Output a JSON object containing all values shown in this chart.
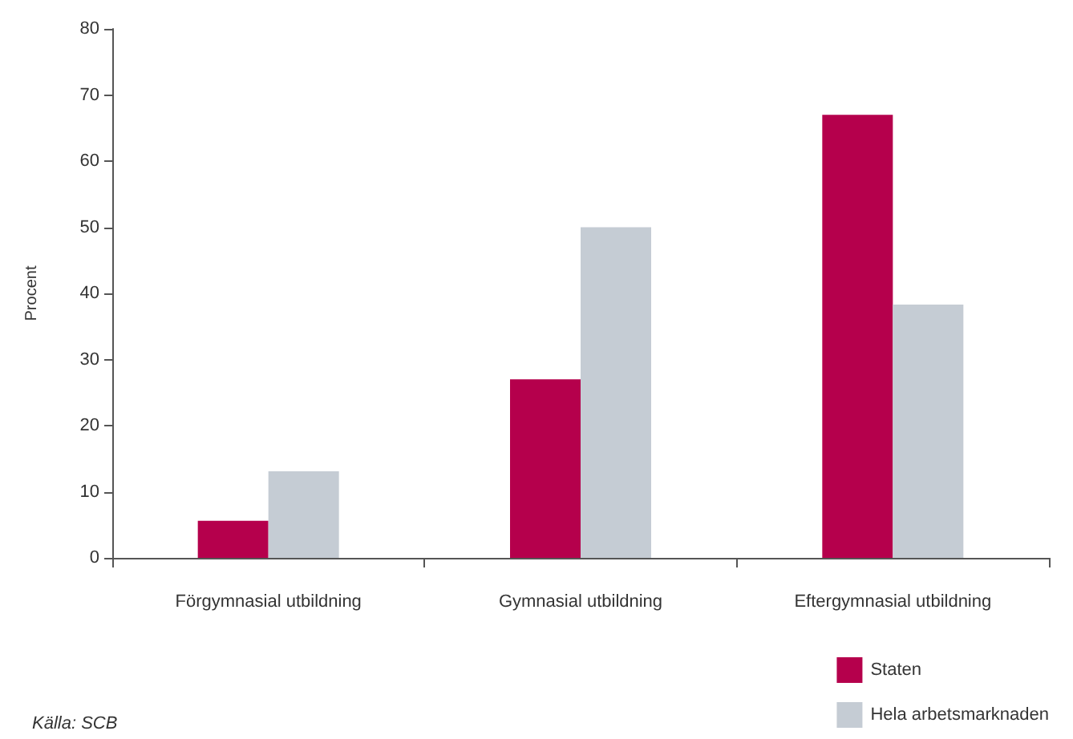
{
  "chart_data": {
    "type": "bar",
    "ylabel": "Procent",
    "categories": [
      "Förgymnasial utbildning",
      "Gymnasial utbildning",
      "Eftergymnasial utbildning"
    ],
    "series": [
      {
        "name": "Staten",
        "color": "#b5004c",
        "values": [
          5.6,
          27,
          67
        ]
      },
      {
        "name": "Hela arbetsmarknaden",
        "color": "#c5ccd4",
        "values": [
          13.1,
          50,
          38.3
        ]
      }
    ],
    "ylim": [
      0,
      80
    ],
    "yticks": [
      0,
      10,
      20,
      30,
      40,
      50,
      60,
      70,
      80
    ],
    "grid": false,
    "legend": "bottom right",
    "annotations": [
      "Källa: SCB"
    ]
  }
}
